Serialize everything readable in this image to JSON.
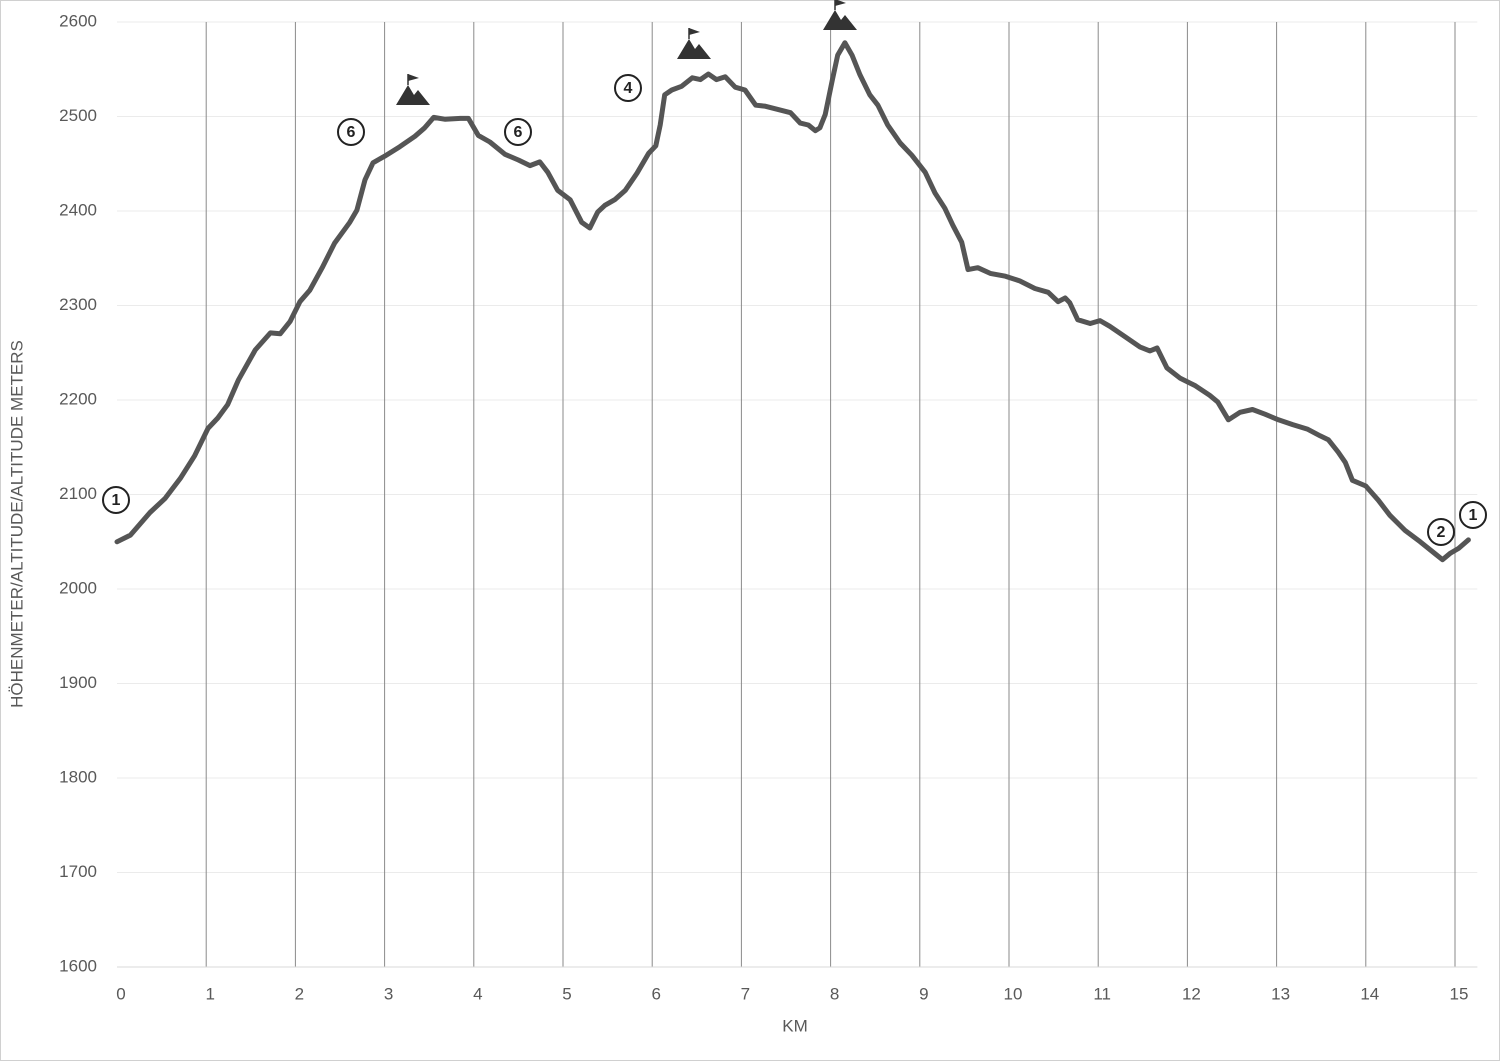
{
  "chart_data": {
    "type": "line",
    "ylabel": "HÖHENMETER/ALTITUDE/ALTITUDE METERS",
    "xlabel": "KM",
    "color": "#555555",
    "x": [
      0,
      0.15,
      0.37,
      0.54,
      0.71,
      0.87,
      1.02,
      1.13,
      1.24,
      1.36,
      1.55,
      1.72,
      1.83,
      1.94,
      2.05,
      2.16,
      2.3,
      2.44,
      2.61,
      2.69,
      2.78,
      2.87,
      3,
      3.17,
      3.34,
      3.45,
      3.55,
      3.68,
      3.85,
      3.94,
      4.05,
      4.18,
      4.35,
      4.5,
      4.63,
      4.74,
      4.83,
      4.94,
      5.08,
      5.21,
      5.3,
      5.39,
      5.47,
      5.58,
      5.7,
      5.83,
      5.96,
      6.04,
      6.09,
      6.14,
      6.22,
      6.33,
      6.45,
      6.54,
      6.63,
      6.72,
      6.82,
      6.93,
      7.04,
      7.16,
      7.26,
      7.43,
      7.55,
      7.66,
      7.75,
      7.83,
      7.88,
      7.94,
      8.02,
      8.08,
      8.16,
      8.24,
      8.33,
      8.44,
      8.53,
      8.64,
      8.78,
      8.91,
      9.06,
      9.17,
      9.28,
      9.37,
      9.47,
      9.54,
      9.65,
      9.79,
      9.96,
      10.12,
      10.29,
      10.44,
      10.55,
      10.63,
      10.68,
      10.77,
      10.91,
      11.02,
      11.13,
      11.3,
      11.47,
      11.58,
      11.66,
      11.77,
      11.92,
      12.09,
      12.25,
      12.34,
      12.46,
      12.59,
      12.73,
      12.87,
      13.02,
      13.18,
      13.35,
      13.49,
      13.58,
      13.69,
      13.77,
      13.85,
      14,
      14.14,
      14.27,
      14.44,
      14.61,
      14.78,
      14.86,
      14.95,
      15.04,
      15.15
    ],
    "values": [
      2050,
      2057,
      2081,
      2096,
      2117,
      2141,
      2170,
      2181,
      2195,
      2221,
      2253,
      2271,
      2270,
      2283,
      2304,
      2316,
      2340,
      2366,
      2388,
      2401,
      2433,
      2451,
      2458,
      2468,
      2479,
      2488,
      2499,
      2497,
      2498,
      2498,
      2480,
      2473,
      2460,
      2454,
      2448,
      2452,
      2441,
      2422,
      2412,
      2388,
      2382,
      2399,
      2406,
      2412,
      2422,
      2440,
      2461,
      2469,
      2491,
      2523,
      2528,
      2532,
      2541,
      2539,
      2545,
      2539,
      2542,
      2531,
      2528,
      2512,
      2511,
      2507,
      2504,
      2493,
      2491,
      2485,
      2488,
      2502,
      2539,
      2565,
      2578,
      2565,
      2544,
      2523,
      2512,
      2491,
      2472,
      2459,
      2441,
      2419,
      2403,
      2385,
      2367,
      2338,
      2340,
      2334,
      2331,
      2326,
      2318,
      2314,
      2304,
      2308,
      2303,
      2285,
      2281,
      2284,
      2278,
      2267,
      2256,
      2252,
      2255,
      2234,
      2223,
      2215,
      2205,
      2198,
      2179,
      2187,
      2190,
      2185,
      2179,
      2174,
      2169,
      2162,
      2158,
      2145,
      2134,
      2115,
      2109,
      2094,
      2078,
      2062,
      2050,
      2037,
      2031,
      2038,
      2043,
      2052
    ],
    "xlim": [
      0,
      15.25
    ],
    "ylim": [
      1600,
      2600
    ],
    "xticks": [
      0,
      1,
      2,
      3,
      4,
      5,
      6,
      7,
      8,
      9,
      10,
      11,
      12,
      13,
      14,
      15
    ],
    "yticks": [
      1600,
      1700,
      1800,
      1900,
      2000,
      2100,
      2200,
      2300,
      2400,
      2500,
      2600
    ],
    "grid": true,
    "annotations": [
      "1",
      "6",
      "6",
      "4",
      "2",
      "1"
    ]
  }
}
